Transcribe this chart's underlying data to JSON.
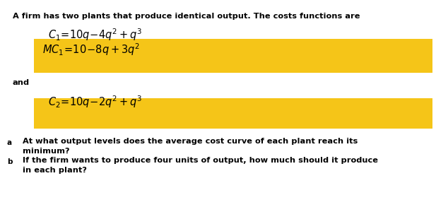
{
  "bg_color": "#ffffff",
  "gold_color": "#F5C518",
  "text_color": "#000000",
  "fig_width": 6.17,
  "fig_height": 3.17,
  "dpi": 100,
  "intro_text": "A firm has two plants that produce identical output. The costs functions are",
  "eq_c1": "$C_1\\!=\\!10q\\!-\\!4q^2 + q^3$",
  "eq_mc1": "$MC_1\\!=\\!10\\!-\\!8q + 3q^2$",
  "eq_and": "and",
  "eq_c2": "$C_2\\!=\\!10q\\!-\\!2q^2 + q^3$",
  "qa_label": "a",
  "qa_text1": "At what output levels does the average cost curve of each plant reach its",
  "qa_text2": "minimum?",
  "qb_label": "b",
  "qb_text1": "If the firm wants to produce four units of output, how much should it produce",
  "qb_text2": "in each plant?"
}
